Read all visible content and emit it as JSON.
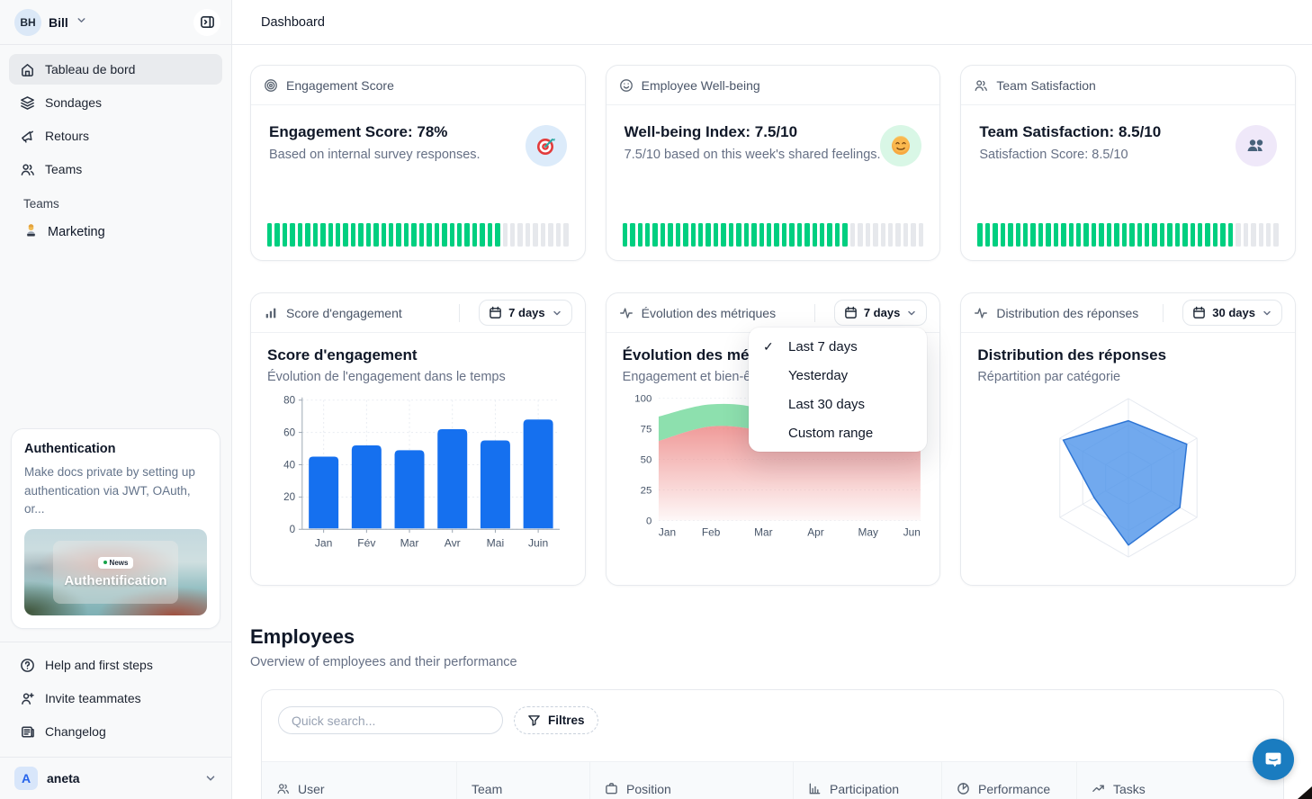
{
  "colors": {
    "accent_blue": "#1570ef",
    "tick_green": "#00cf80",
    "tick_gray": "#e6e8ec",
    "area_green": "#8de0ae",
    "area_pink": "#ec8280",
    "radar_fill": "#4d94ea",
    "radar_stroke": "#2e75d4",
    "intercom_blue": "#1a7cc0"
  },
  "icons": {
    "check": "✓"
  },
  "sidebar": {
    "workspace": {
      "initials": "BH",
      "name": "Bill"
    },
    "nav": [
      {
        "label": "Tableau de bord",
        "active": true
      },
      {
        "label": "Sondages",
        "active": false
      },
      {
        "label": "Retours",
        "active": false
      },
      {
        "label": "Teams",
        "active": false
      }
    ],
    "teams_section": {
      "title": "Teams",
      "items": [
        {
          "label": "Marketing"
        }
      ]
    },
    "promo": {
      "title": "Authentication",
      "description": "Make docs private by setting up authentication via JWT, OAuth, or...",
      "badge": "News",
      "image_caption": "Authentification"
    },
    "footer_nav": [
      {
        "label": "Help and first steps"
      },
      {
        "label": "Invite teammates"
      },
      {
        "label": "Changelog"
      }
    ],
    "account": {
      "initial": "A",
      "name": "aneta"
    }
  },
  "header": {
    "title": "Dashboard"
  },
  "stat_cards": [
    {
      "header": "Engagement Score",
      "title": "Engagement Score: 78%",
      "subtitle": "Based on internal survey responses.",
      "progress_pct": 78
    },
    {
      "header": "Employee Well-being",
      "title": "Well-being Index: 7.5/10",
      "subtitle": "7.5/10 based on this week's shared feelings.",
      "progress_pct": 75
    },
    {
      "header": "Team Satisfaction",
      "title": "Team Satisfaction: 8.5/10",
      "subtitle": "Satisfaction Score: 8.5/10",
      "progress_pct": 85
    }
  ],
  "chart_cards": [
    {
      "header": "Score d'engagement",
      "range": "7 days"
    },
    {
      "header": "Évolution des métriques",
      "range": "7 days"
    },
    {
      "header": "Distribution des réponses",
      "range": "30 days"
    }
  ],
  "dropdown_menu": {
    "items": [
      {
        "label": "Last 7 days",
        "checked": true
      },
      {
        "label": "Yesterday",
        "checked": false
      },
      {
        "label": "Last 30 days",
        "checked": false
      },
      {
        "label": "Custom range",
        "checked": false
      }
    ]
  },
  "employees": {
    "title": "Employees",
    "subtitle": "Overview of employees and their performance",
    "search_placeholder": "Quick search...",
    "filters_label": "Filtres",
    "columns": [
      {
        "label": "User"
      },
      {
        "label": "Team"
      },
      {
        "label": "Position"
      },
      {
        "label": "Participation"
      },
      {
        "label": "Performance"
      },
      {
        "label": "Tasks"
      }
    ]
  },
  "chart_data": [
    {
      "type": "bar",
      "title": "Score d'engagement",
      "subtitle": "Évolution de l'engagement dans le temps",
      "categories": [
        "Jan",
        "Fév",
        "Mar",
        "Avr",
        "Mai",
        "Juin"
      ],
      "values": [
        45,
        52,
        49,
        62,
        55,
        68
      ],
      "ylim": [
        0,
        80
      ],
      "yticks": [
        0,
        20,
        40,
        60,
        80
      ],
      "bar_color": "#1570ef",
      "grid": "dashed"
    },
    {
      "type": "area",
      "title": "Évolution des métriques",
      "subtitle": "Engagement et bien-être",
      "categories": [
        "Jan",
        "Feb",
        "Mar",
        "Apr",
        "May",
        "Jun"
      ],
      "series": [
        {
          "name": "engagement",
          "values": [
            85,
            95,
            90,
            62,
            68,
            66
          ],
          "color": "#8de0ae"
        },
        {
          "name": "bien-être",
          "values": [
            65,
            77,
            73,
            58,
            64,
            67
          ],
          "color": "#ec8280"
        }
      ],
      "ylim": [
        0,
        100
      ],
      "yticks": [
        0,
        25,
        50,
        75,
        100
      ],
      "grid": "dashed"
    },
    {
      "type": "radar",
      "title": "Distribution des réponses",
      "subtitle": "Répartition par catégorie",
      "axes": 6,
      "values": [
        72,
        85,
        75,
        85,
        50,
        95
      ],
      "max": 100,
      "levels": 3,
      "fill": "#4d94ea",
      "stroke": "#2e75d4"
    }
  ]
}
